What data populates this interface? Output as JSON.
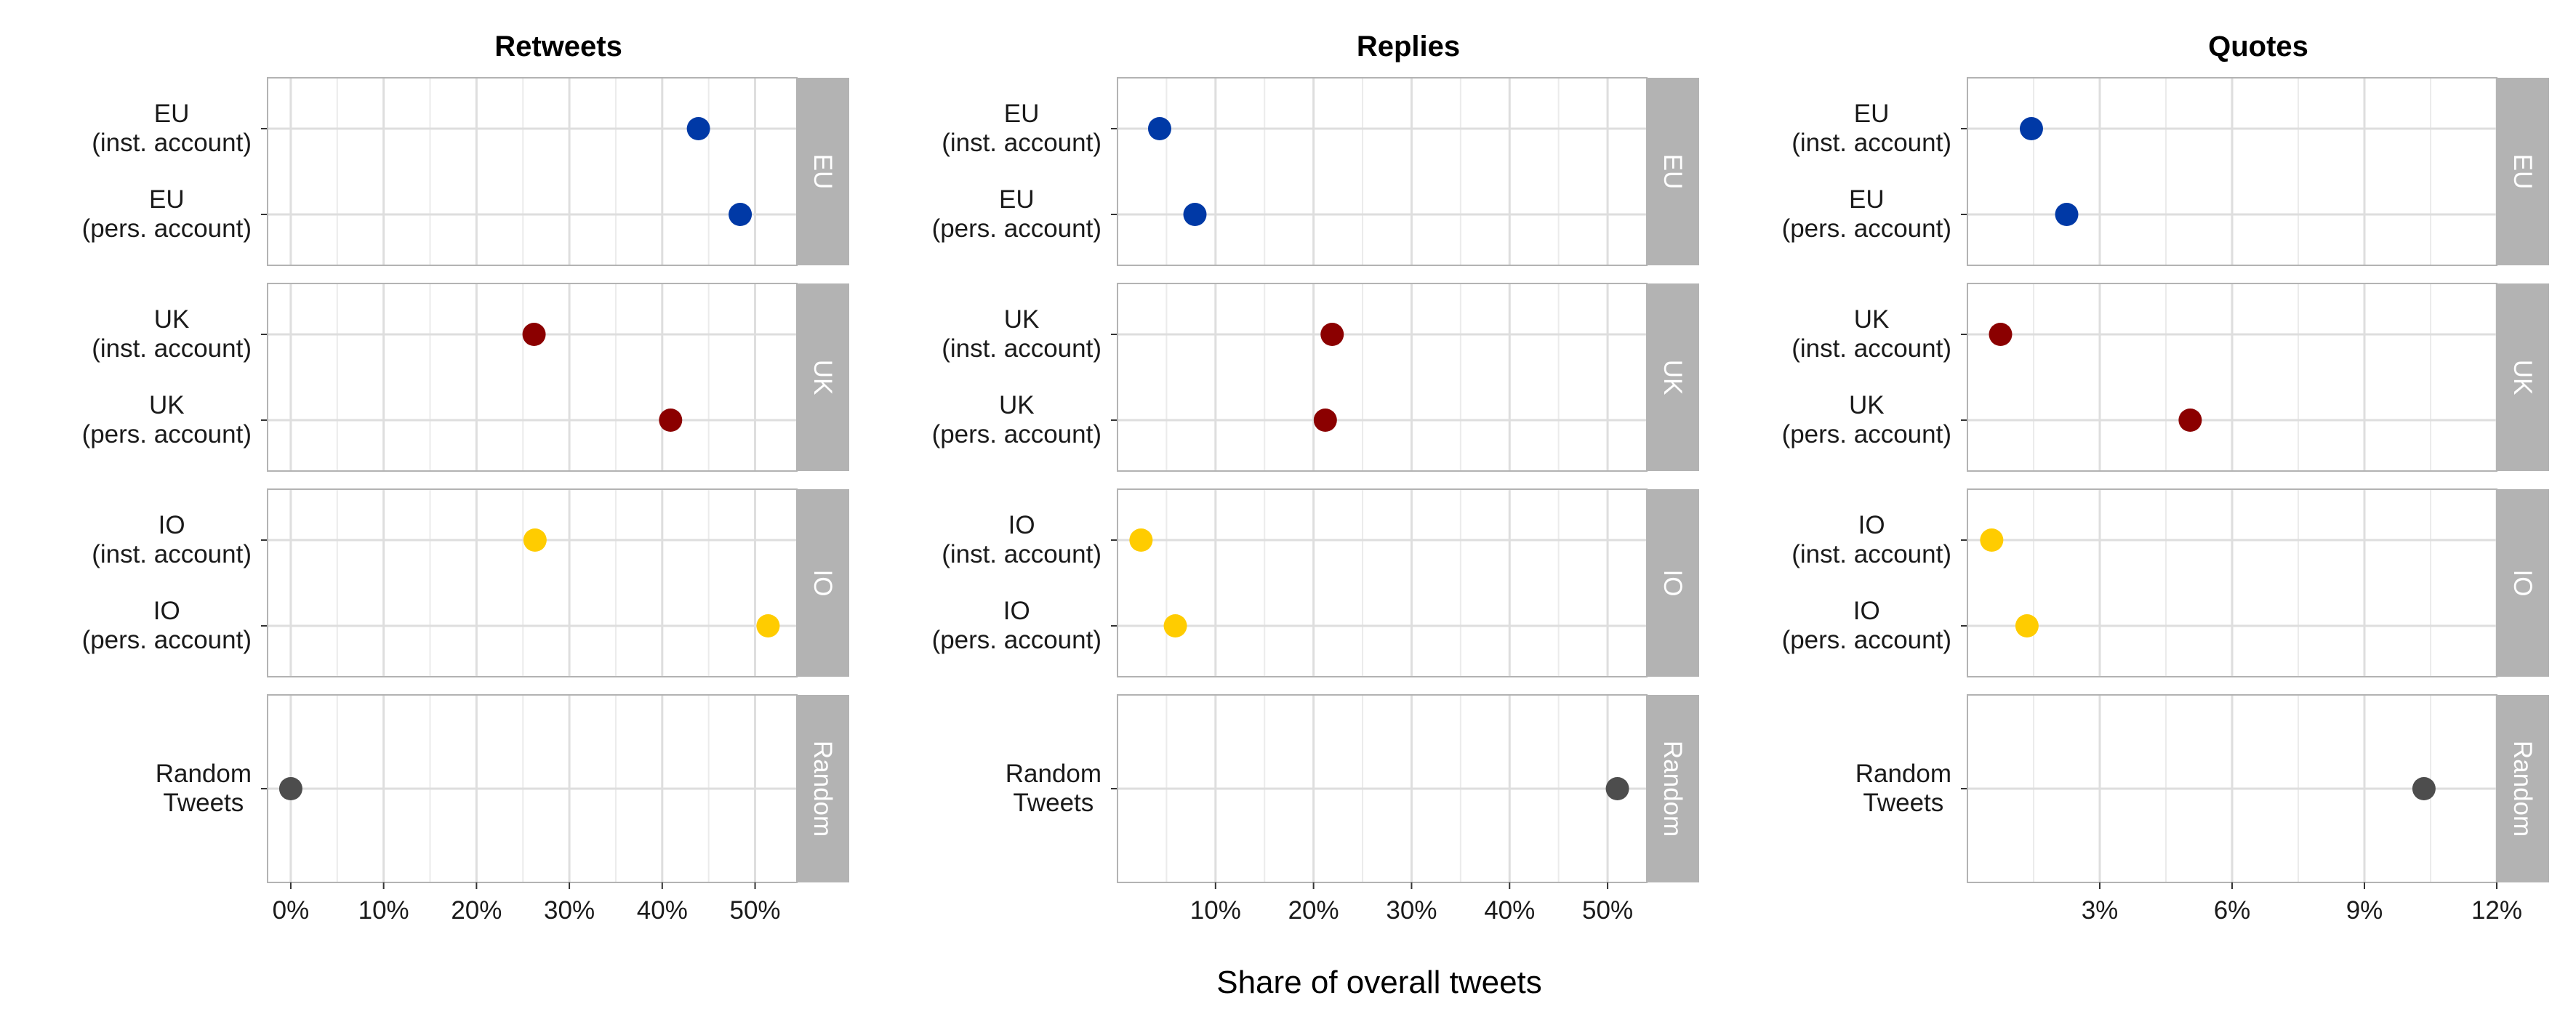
{
  "chart_data": {
    "type": "scatter",
    "layout": "faceted dot plot, 3 columns x 4 rows",
    "xlabel": "Share of overall tweets",
    "grid": true,
    "legend": "none",
    "row_groups": [
      "EU",
      "UK",
      "IO",
      "Random"
    ],
    "group_colors": {
      "EU": "#0039a6",
      "UK": "#8b0000",
      "IO": "#ffcc00",
      "Random": "#4d4d4d"
    },
    "strip_color": "#b3b3b3",
    "categories": {
      "EU": [
        "EU\n(inst. account)",
        "EU\n(pers. account)"
      ],
      "UK": [
        "UK\n(inst. account)",
        "UK\n(pers. account)"
      ],
      "IO": [
        "IO\n(inst. account)",
        "IO\n(pers. account)"
      ],
      "Random": [
        "Random\nTweets"
      ]
    },
    "panels": [
      {
        "title": "Retweets",
        "xlim": [
          -0.025,
          0.545
        ],
        "ticks": [
          0,
          0.1,
          0.2,
          0.3,
          0.4,
          0.5
        ],
        "tick_labels": [
          "0%",
          "10%",
          "20%",
          "30%",
          "40%",
          "50%"
        ],
        "values": {
          "EU": [
            0.439,
            0.484
          ],
          "UK": [
            0.262,
            0.409
          ],
          "IO": [
            0.263,
            0.514
          ],
          "Random": [
            0.0
          ]
        }
      },
      {
        "title": "Replies",
        "xlim": [
          0.0,
          0.54
        ],
        "ticks": [
          0.1,
          0.2,
          0.3,
          0.4,
          0.5
        ],
        "tick_labels": [
          "10%",
          "20%",
          "30%",
          "40%",
          "50%"
        ],
        "values": {
          "EU": [
            0.043,
            0.079
          ],
          "UK": [
            0.219,
            0.212
          ],
          "IO": [
            0.024,
            0.059
          ],
          "Random": [
            0.51
          ]
        }
      },
      {
        "title": "Quotes",
        "xlim": [
          0.0,
          0.12
        ],
        "ticks": [
          0.03,
          0.06,
          0.09,
          0.12
        ],
        "tick_labels": [
          "3%",
          "6%",
          "9%",
          "12%"
        ],
        "values": {
          "EU": [
            0.0145,
            0.0225
          ],
          "UK": [
            0.0075,
            0.0505
          ],
          "IO": [
            0.0055,
            0.0135
          ],
          "Random": [
            0.1035
          ]
        }
      }
    ]
  }
}
